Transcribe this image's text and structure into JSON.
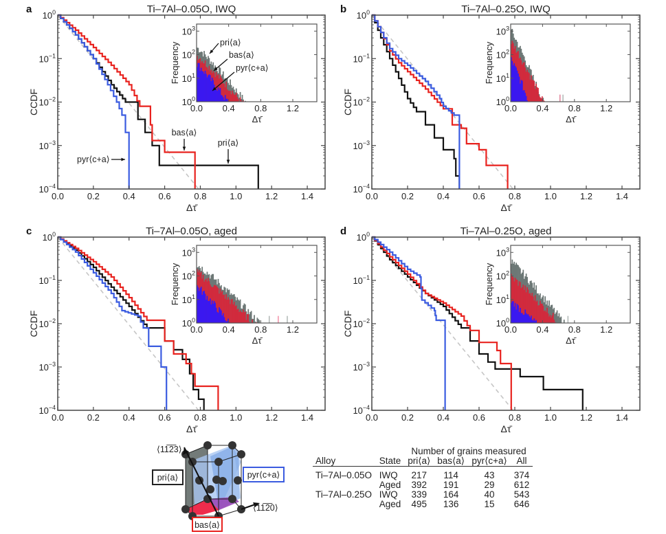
{
  "chart_data": [
    {
      "id": "a",
      "type": "line",
      "panel_label": "a",
      "title": "Ti–7Al–0.05O, IWQ",
      "xlabel": "Δτ̄",
      "ylabel": "CCDF",
      "xlim": [
        0,
        1.5
      ],
      "ylim_log10": [
        -4,
        0
      ],
      "xticks": [
        "0.0",
        "0.2",
        "0.4",
        "0.6",
        "0.8",
        "1.0",
        "1.2",
        "1.4"
      ],
      "yticks": [
        "10^0",
        "10^-1",
        "10^-2",
        "10^-3",
        "10^-4"
      ],
      "series": [
        {
          "name": "pri⟨a⟩",
          "color": "#111111",
          "x": [
            0,
            0.1,
            0.2,
            0.3,
            0.38,
            0.45,
            0.49,
            0.53,
            0.57,
            1.125,
            1.125
          ],
          "y": [
            1,
            0.35,
            0.1,
            0.025,
            0.01,
            0.004,
            0.002,
            0.001,
            0.00035,
            0.00035,
            0.0001
          ]
        },
        {
          "name": "bas⟨a⟩",
          "color": "#e8221e",
          "x": [
            0,
            0.1,
            0.2,
            0.3,
            0.4,
            0.46,
            0.52,
            0.53,
            0.6,
            0.77,
            0.77
          ],
          "y": [
            1,
            0.45,
            0.18,
            0.07,
            0.025,
            0.008,
            0.003,
            0.0013,
            0.0007,
            0.0007,
            0.0001
          ]
        },
        {
          "name": "pyr⟨c+a⟩",
          "color": "#3a5be0",
          "x": [
            0,
            0.1,
            0.2,
            0.28,
            0.33,
            0.36,
            0.38,
            0.4,
            0.4
          ],
          "y": [
            1,
            0.35,
            0.1,
            0.025,
            0.01,
            0.005,
            0.002,
            0.0015,
            0.0001
          ]
        },
        {
          "name": "reference",
          "color": "#c6c6c6",
          "dashed": true,
          "x": [
            0,
            0.79
          ],
          "y": [
            1,
            0.0001
          ]
        }
      ],
      "annotations": [
        "pri⟨a⟩",
        "bas⟨a⟩",
        "pyr⟨c+a⟩"
      ],
      "inset": {
        "type": "bar",
        "ylabel": "Frequency",
        "xlabel": "Δτ̄",
        "xlim": [
          0,
          1.5
        ],
        "ylim_log10": [
          0,
          3.3
        ],
        "xticks": [
          "0.0",
          "0.4",
          "0.8",
          "1.2"
        ],
        "yticks": [
          "10^0",
          "10^1",
          "10^2",
          "10^3"
        ],
        "annotations": [
          "pri⟨a⟩",
          "bas⟨a⟩",
          "pyr⟨c+a⟩"
        ],
        "series": [
          {
            "name": "pri⟨a⟩",
            "color": "#6d7876",
            "peak": 200,
            "decay_end": 0.6
          },
          {
            "name": "bas⟨a⟩",
            "color": "#d8263a",
            "peak": 90,
            "decay_end": 0.55
          },
          {
            "name": "pyr⟨c+a⟩",
            "color": "#3a18f0",
            "peak": 40,
            "decay_end": 0.38
          }
        ]
      }
    },
    {
      "id": "b",
      "type": "line",
      "panel_label": "b",
      "title": "Ti–7Al–0.25O, IWQ",
      "xlabel": "Δτ̄",
      "ylabel": "CCDF",
      "xlim": [
        0,
        1.5
      ],
      "ylim_log10": [
        -4,
        0
      ],
      "xticks": [
        "0.0",
        "0.2",
        "0.4",
        "0.6",
        "0.8",
        "1.0",
        "1.2",
        "1.4"
      ],
      "yticks": [
        "10^0",
        "10^-1",
        "10^-2",
        "10^-3",
        "10^-4"
      ],
      "series": [
        {
          "name": "pri⟨a⟩",
          "color": "#111111",
          "x": [
            0,
            0.05,
            0.1,
            0.15,
            0.2,
            0.25,
            0.3,
            0.35,
            0.4,
            0.46,
            0.47,
            0.49,
            0.49
          ],
          "y": [
            1,
            0.3,
            0.1,
            0.035,
            0.012,
            0.006,
            0.003,
            0.0015,
            0.0008,
            0.0005,
            0.0002,
            0.00015,
            0.0001
          ]
        },
        {
          "name": "bas⟨a⟩",
          "color": "#e8221e",
          "x": [
            0,
            0.05,
            0.1,
            0.15,
            0.2,
            0.3,
            0.4,
            0.45,
            0.5,
            0.53,
            0.6,
            0.64,
            0.76,
            0.76
          ],
          "y": [
            1,
            0.4,
            0.15,
            0.08,
            0.05,
            0.02,
            0.007,
            0.003,
            0.0025,
            0.0011,
            0.0008,
            0.00035,
            0.00035,
            0.0001
          ]
        },
        {
          "name": "pyr⟨c+a⟩",
          "color": "#3a5be0",
          "x": [
            0,
            0.05,
            0.1,
            0.15,
            0.2,
            0.3,
            0.38,
            0.4,
            0.46,
            0.49,
            0.49
          ],
          "y": [
            1,
            0.4,
            0.17,
            0.1,
            0.07,
            0.03,
            0.012,
            0.008,
            0.005,
            0.0025,
            0.0001
          ]
        },
        {
          "name": "reference",
          "color": "#c6c6c6",
          "dashed": true,
          "x": [
            0,
            0.79
          ],
          "y": [
            1,
            0.0001
          ]
        }
      ],
      "inset": {
        "type": "bar",
        "ylabel": "Frequency",
        "xlabel": "Δτ̄",
        "xlim": [
          0,
          1.5
        ],
        "ylim_log10": [
          0,
          3.3
        ],
        "xticks": [
          "0.0",
          "0.4",
          "0.8",
          "1.2"
        ],
        "yticks": [
          "10^0",
          "10^1",
          "10^2",
          "10^3"
        ],
        "series": [
          {
            "name": "pri⟨a⟩",
            "color": "#6d7876",
            "peak": 1000,
            "decay_end": 0.4
          },
          {
            "name": "bas⟨a⟩",
            "color": "#d8263a",
            "peak": 350,
            "decay_end": 0.4
          },
          {
            "name": "pyr⟨c+a⟩",
            "color": "#3a18f0",
            "peak": 60,
            "decay_end": 0.22
          }
        ]
      }
    },
    {
      "id": "c",
      "type": "line",
      "panel_label": "c",
      "title": "Ti–7Al–0.05O, aged",
      "xlabel": "Δτ̄",
      "ylabel": "CCDF",
      "xlim": [
        0,
        1.5
      ],
      "ylim_log10": [
        -4,
        0
      ],
      "xticks": [
        "0.0",
        "0.2",
        "0.4",
        "0.6",
        "0.8",
        "1.0",
        "1.2",
        "1.4"
      ],
      "yticks": [
        "10^0",
        "10^-1",
        "10^-2",
        "10^-3",
        "10^-4"
      ],
      "series": [
        {
          "name": "pri⟨a⟩",
          "color": "#111111",
          "x": [
            0,
            0.1,
            0.2,
            0.3,
            0.4,
            0.5,
            0.6,
            0.65,
            0.7,
            0.74,
            0.76,
            0.79,
            0.82,
            0.82
          ],
          "y": [
            1,
            0.5,
            0.2,
            0.07,
            0.025,
            0.008,
            0.004,
            0.0025,
            0.0015,
            0.0007,
            0.0003,
            0.00018,
            0.00018,
            0.0001
          ]
        },
        {
          "name": "bas⟨a⟩",
          "color": "#e8221e",
          "x": [
            0,
            0.1,
            0.2,
            0.3,
            0.4,
            0.5,
            0.6,
            0.65,
            0.72,
            0.75,
            0.77,
            0.9,
            0.9
          ],
          "y": [
            1,
            0.55,
            0.27,
            0.12,
            0.04,
            0.012,
            0.004,
            0.002,
            0.0012,
            0.0007,
            0.00036,
            0.00036,
            0.0001
          ]
        },
        {
          "name": "pyr⟨c+a⟩",
          "color": "#3a5be0",
          "x": [
            0,
            0.1,
            0.2,
            0.3,
            0.36,
            0.45,
            0.48,
            0.51,
            0.58,
            0.61,
            0.61
          ],
          "y": [
            1,
            0.45,
            0.15,
            0.05,
            0.02,
            0.015,
            0.008,
            0.003,
            0.001,
            0.001,
            0.0001
          ]
        },
        {
          "name": "reference",
          "color": "#c6c6c6",
          "dashed": true,
          "x": [
            0,
            0.79
          ],
          "y": [
            1,
            0.0001
          ]
        }
      ],
      "inset": {
        "type": "bar",
        "ylabel": "Frequency",
        "xlabel": "Δτ̄",
        "xlim": [
          0,
          1.5
        ],
        "ylim_log10": [
          0,
          3.3
        ],
        "xticks": [
          "0.0",
          "0.4",
          "0.8",
          "1.2"
        ],
        "yticks": [
          "10^0",
          "10^1",
          "10^2",
          "10^3"
        ],
        "series": [
          {
            "name": "pri⟨a⟩",
            "color": "#6d7876",
            "peak": 300,
            "decay_end": 0.78
          },
          {
            "name": "bas⟨a⟩",
            "color": "#d8263a",
            "peak": 140,
            "decay_end": 0.7
          },
          {
            "name": "pyr⟨c+a⟩",
            "color": "#3a18f0",
            "peak": 35,
            "decay_end": 0.4
          }
        ]
      }
    },
    {
      "id": "d",
      "type": "line",
      "panel_label": "d",
      "title": "Ti–7Al–0.25O, aged",
      "xlabel": "Δτ̄",
      "ylabel": "CCDF",
      "xlim": [
        0,
        1.5
      ],
      "ylim_log10": [
        -4,
        0
      ],
      "xticks": [
        "0.0",
        "0.2",
        "0.4",
        "0.6",
        "0.8",
        "1.0",
        "1.2",
        "1.4"
      ],
      "yticks": [
        "10^0",
        "10^-1",
        "10^-2",
        "10^-3",
        "10^-4"
      ],
      "series": [
        {
          "name": "pri⟨a⟩",
          "color": "#111111",
          "x": [
            0,
            0.1,
            0.2,
            0.3,
            0.4,
            0.5,
            0.55,
            0.6,
            0.65,
            0.69,
            0.83,
            0.96,
            1.18,
            1.18
          ],
          "y": [
            1,
            0.3,
            0.12,
            0.05,
            0.025,
            0.008,
            0.004,
            0.002,
            0.0013,
            0.0009,
            0.0006,
            0.0003,
            0.0003,
            0.0001
          ]
        },
        {
          "name": "bas⟨a⟩",
          "color": "#e8221e",
          "x": [
            0,
            0.1,
            0.2,
            0.3,
            0.4,
            0.5,
            0.55,
            0.6,
            0.7,
            0.72,
            0.78,
            0.78
          ],
          "y": [
            1,
            0.35,
            0.14,
            0.05,
            0.03,
            0.015,
            0.007,
            0.0037,
            0.0024,
            0.0012,
            0.0012,
            0.0001
          ]
        },
        {
          "name": "pyr⟨c+a⟩",
          "color": "#3a5be0",
          "x": [
            0,
            0.1,
            0.2,
            0.27,
            0.28,
            0.35,
            0.36,
            0.41,
            0.41
          ],
          "y": [
            1,
            0.45,
            0.18,
            0.12,
            0.035,
            0.02,
            0.012,
            0.012,
            0.0001
          ]
        },
        {
          "name": "reference",
          "color": "#c6c6c6",
          "dashed": true,
          "x": [
            0,
            0.79
          ],
          "y": [
            1,
            0.0001
          ]
        }
      ],
      "inset": {
        "type": "bar",
        "ylabel": "Frequency",
        "xlabel": "Δτ̄",
        "xlim": [
          0,
          1.5
        ],
        "ylim_log10": [
          0,
          3.3
        ],
        "xticks": [
          "0.0",
          "0.4",
          "0.8",
          "1.2"
        ],
        "yticks": [
          "10^0",
          "10^1",
          "10^2",
          "10^3"
        ],
        "series": [
          {
            "name": "pri⟨a⟩",
            "color": "#6d7876",
            "peak": 400,
            "decay_end": 0.66
          },
          {
            "name": "bas⟨a⟩",
            "color": "#d8263a",
            "peak": 90,
            "decay_end": 0.6
          },
          {
            "name": "pyr⟨c+a⟩",
            "color": "#3a18f0",
            "peak": 8,
            "decay_end": 0.3
          }
        ]
      }
    }
  ],
  "diagram": {
    "direction_top": "⟨11̅2̅3⟩",
    "direction_right": "⟨11̅2̅0⟩",
    "label_pri": "pri⟨a⟩",
    "label_pyr": "pyr⟨c+a⟩",
    "label_bas": "bas⟨a⟩",
    "colors": {
      "pri": "#6b7472",
      "pyr": "#a9c7f2",
      "bas": "#ee2c4c",
      "pyr_basal": "#9a48b8"
    }
  },
  "table": {
    "group_header": "Number of grains measured",
    "headers": [
      "Alloy",
      "State",
      "pri⟨a⟩",
      "bas⟨a⟩",
      "pyr⟨c+a⟩",
      "All"
    ],
    "rows": [
      [
        "Ti–7Al–0.05O",
        "IWQ",
        "217",
        "114",
        "43",
        "374"
      ],
      [
        "",
        "Aged",
        "392",
        "191",
        "29",
        "612"
      ],
      [
        "Ti–7Al–0.25O",
        "IWQ",
        "339",
        "164",
        "40",
        "543"
      ],
      [
        "",
        "Aged",
        "495",
        "136",
        "15",
        "646"
      ]
    ]
  }
}
